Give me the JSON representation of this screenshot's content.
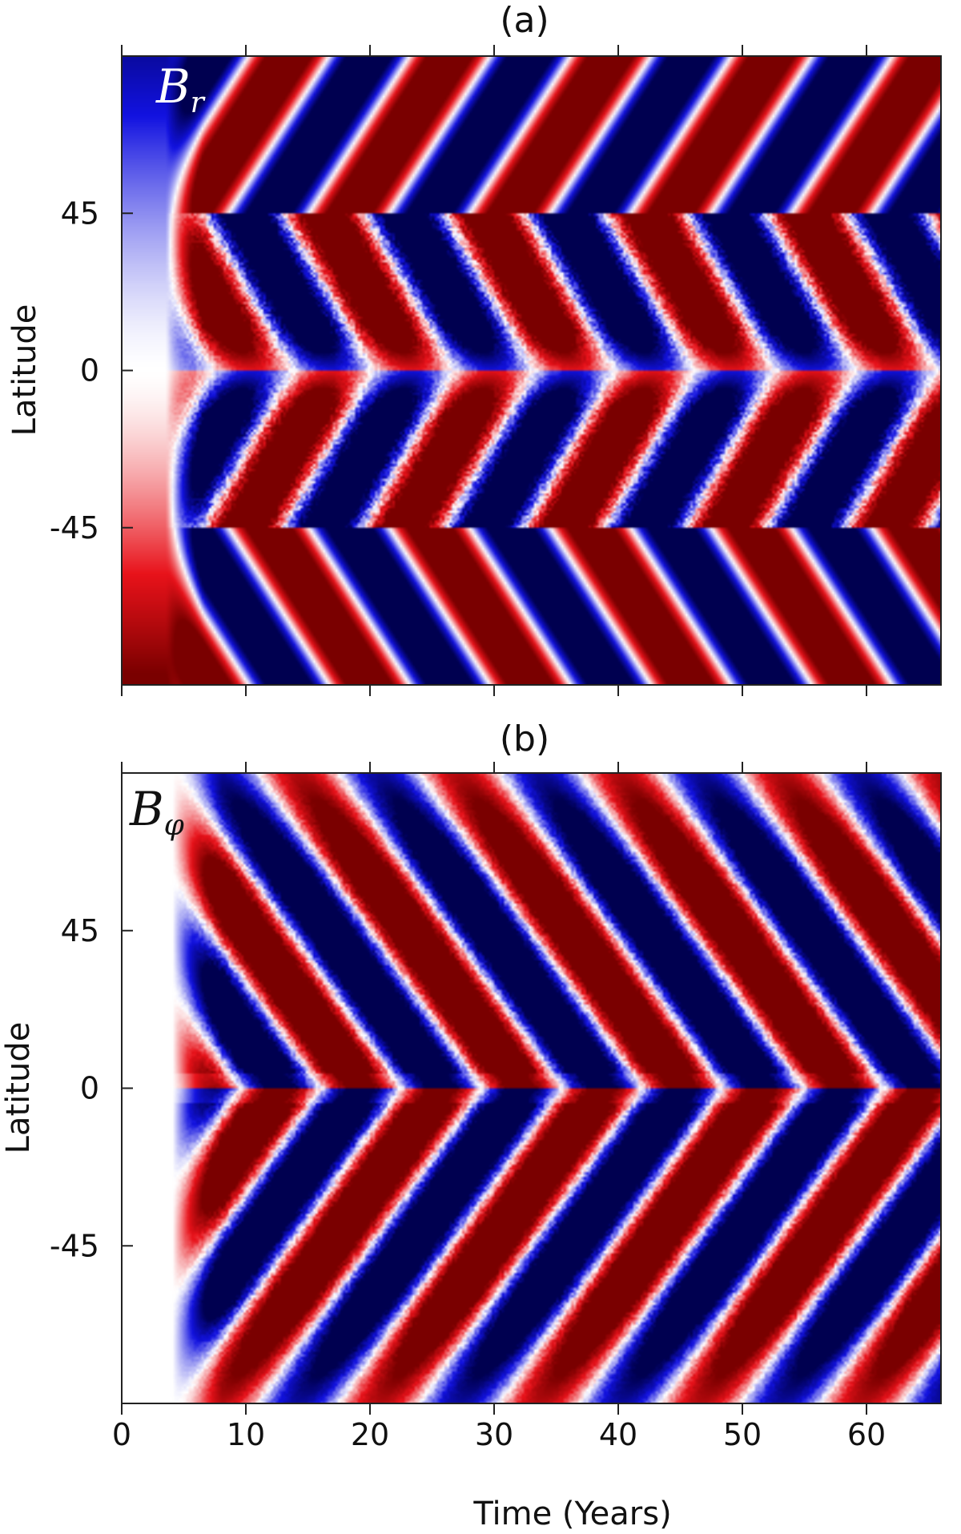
{
  "chart_data": [
    {
      "type": "heatmap",
      "panel_label": "(a)",
      "variable_label": "B",
      "variable_subscript": "r",
      "ylabel": "Latitude",
      "xlabel": "",
      "y_ticks": [
        45,
        0,
        -45
      ],
      "x_ticks": [
        0,
        10,
        20,
        30,
        40,
        50,
        60
      ],
      "xlim": [
        0,
        66
      ],
      "ylim": [
        -90,
        90
      ],
      "colors": {
        "positive": "#7a0000",
        "negative": "#000050",
        "zero": "#ffffff",
        "mid_pos": "#e8121a",
        "mid_neg": "#1212e0"
      },
      "pattern": {
        "cycle_years": 13,
        "polar_branch": {
          "lat_range": [
            45,
            90
          ],
          "direction": "poleward"
        },
        "equatorward_branch": {
          "lat_range": [
            0,
            45
          ],
          "direction": "equatorward"
        }
      }
    },
    {
      "type": "heatmap",
      "panel_label": "(b)",
      "variable_label": "B",
      "variable_subscript": "φ",
      "ylabel": "Latitude",
      "xlabel": "Time (Years)",
      "y_ticks": [
        45,
        0,
        -45
      ],
      "x_ticks": [
        0,
        10,
        20,
        30,
        40,
        50,
        60
      ],
      "xlim": [
        0,
        66
      ],
      "ylim": [
        -90,
        90
      ],
      "colors": {
        "positive": "#7a0000",
        "negative": "#000050",
        "zero": "#ffffff",
        "mid_pos": "#e8121a",
        "mid_neg": "#1212e0"
      },
      "pattern": {
        "cycle_years": 13,
        "equatorward_branch": {
          "lat_range": [
            0,
            90
          ],
          "direction": "equatorward"
        }
      }
    }
  ]
}
